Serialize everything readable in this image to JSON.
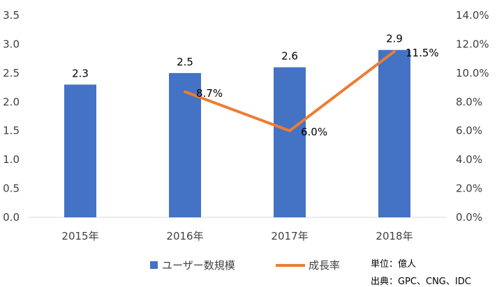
{
  "chart_data": {
    "type": "bar",
    "categories": [
      "2015年",
      "2016年",
      "2017年",
      "2018年"
    ],
    "series": [
      {
        "name": "ユーザー数規模",
        "type": "bar",
        "axis": "left",
        "values": [
          2.3,
          2.5,
          2.6,
          2.9
        ],
        "labels": [
          "2.3",
          "2.5",
          "2.6",
          "2.9"
        ],
        "color": "#4472C4"
      },
      {
        "name": "成長率",
        "type": "line",
        "axis": "right",
        "values": [
          null,
          8.7,
          6.0,
          11.5
        ],
        "labels": [
          null,
          "8.7%",
          "6.0%",
          "11.5%"
        ],
        "color": "#ED7D31"
      }
    ],
    "y_left": {
      "ylim": [
        0,
        3.5
      ],
      "ticks": [
        "0.0",
        "0.5",
        "1.0",
        "1.5",
        "2.0",
        "2.5",
        "3.0",
        "3.5"
      ]
    },
    "y_right": {
      "ylim": [
        0,
        14
      ],
      "ticks": [
        "0.0%",
        "2.0%",
        "4.0%",
        "6.0%",
        "8.0%",
        "10.0%",
        "12.0%",
        "14.0%"
      ]
    },
    "grid": false,
    "legend": "bottom"
  },
  "notes": {
    "unit": "単位：億人",
    "source": "出典：GPC、CNG、IDC"
  }
}
